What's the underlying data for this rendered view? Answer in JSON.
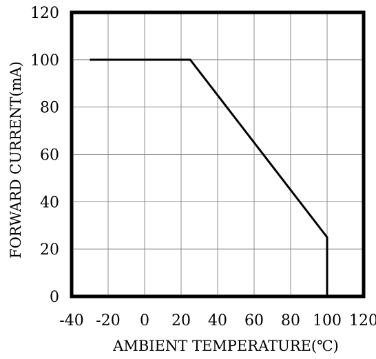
{
  "chart_data": {
    "type": "line",
    "title": "",
    "xlabel": "AMBIENT TEMPERATURE(℃)",
    "ylabel": "FORWARD CURRENT(mA)",
    "xlim": [
      -40,
      120
    ],
    "ylim": [
      0,
      120
    ],
    "x_ticks": [
      -40,
      -20,
      0,
      20,
      40,
      60,
      80,
      100,
      120
    ],
    "y_ticks": [
      0,
      20,
      40,
      60,
      80,
      100,
      120
    ],
    "grid": true,
    "legend": "none",
    "series": [
      {
        "points": [
          {
            "x": -30,
            "y": 100
          },
          {
            "x": 25,
            "y": 100
          },
          {
            "x": 100,
            "y": 25
          },
          {
            "x": 100,
            "y": 0
          }
        ]
      }
    ],
    "colors": {
      "line": "#000000",
      "grid": "#8c8c8c",
      "frame": "#000000",
      "background": "#ffffff"
    }
  }
}
